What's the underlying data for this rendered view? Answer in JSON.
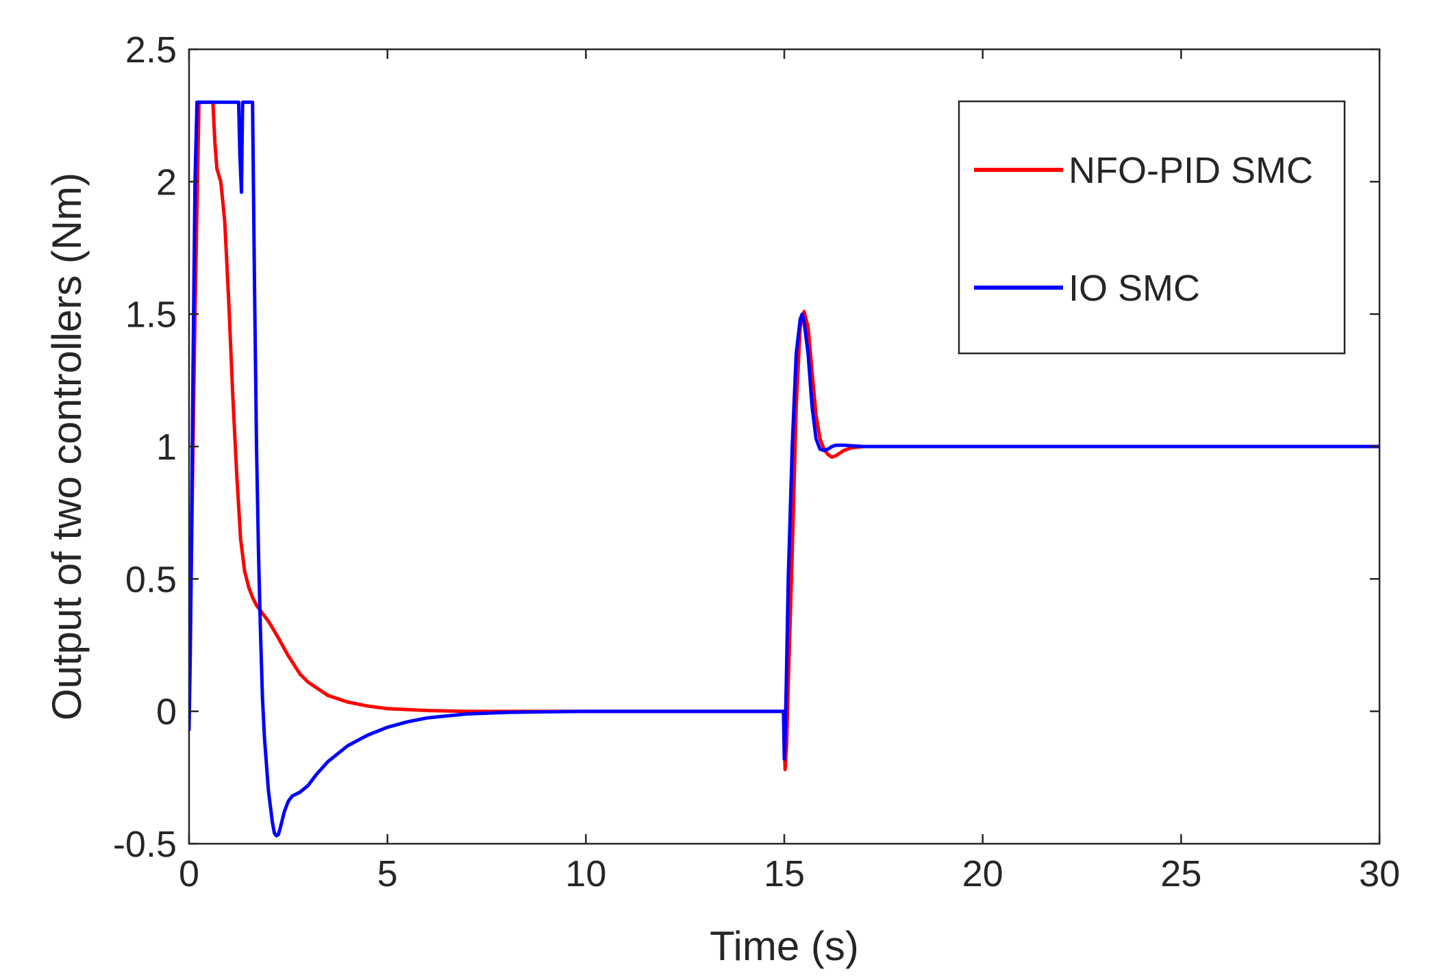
{
  "chart_data": {
    "type": "line",
    "title": "",
    "xlabel": "Time (s)",
    "ylabel": "Output of two controllers (Nm)",
    "xlim": [
      0,
      30
    ],
    "ylim": [
      -0.5,
      2.5
    ],
    "xticks": [
      0,
      5,
      10,
      15,
      20,
      25,
      30
    ],
    "yticks": [
      -0.5,
      0,
      0.5,
      1,
      1.5,
      2,
      2.5
    ],
    "xtick_labels": [
      "0",
      "5",
      "10",
      "15",
      "20",
      "25",
      "30"
    ],
    "ytick_labels": [
      "-0.5",
      "0",
      "0.5",
      "1",
      "1.5",
      "2",
      "2.5"
    ],
    "grid": false,
    "legend_position": "top-right",
    "series": [
      {
        "name": "NFO-PID SMC",
        "color": "#ff0000",
        "x": [
          0,
          0.05,
          0.15,
          0.25,
          0.3,
          0.4,
          0.5,
          0.55,
          0.6,
          0.65,
          0.7,
          0.8,
          0.9,
          1.0,
          1.1,
          1.2,
          1.3,
          1.4,
          1.5,
          1.6,
          1.7,
          1.8,
          2.0,
          2.2,
          2.5,
          2.8,
          3.0,
          3.5,
          4.0,
          4.5,
          5.0,
          6.0,
          7.0,
          8.0,
          10.0,
          12.0,
          14.0,
          14.98,
          15.02,
          15.06,
          15.1,
          15.2,
          15.3,
          15.4,
          15.5,
          15.6,
          15.7,
          15.8,
          15.9,
          16.0,
          16.1,
          16.2,
          16.3,
          16.5,
          16.7,
          17.0,
          17.5,
          18.0,
          20.0,
          25.0,
          30.0
        ],
        "values": [
          0.35,
          0.5,
          1.5,
          2.3,
          2.3,
          2.3,
          2.3,
          2.3,
          2.3,
          2.15,
          2.05,
          2.0,
          1.85,
          1.55,
          1.2,
          0.9,
          0.65,
          0.53,
          0.47,
          0.43,
          0.4,
          0.38,
          0.34,
          0.29,
          0.21,
          0.14,
          0.11,
          0.06,
          0.035,
          0.02,
          0.01,
          0.003,
          0.0,
          0.0,
          0.0,
          0.0,
          0.0,
          0.0,
          -0.22,
          -0.12,
          0.1,
          0.6,
          1.15,
          1.45,
          1.51,
          1.45,
          1.28,
          1.12,
          1.03,
          0.99,
          0.97,
          0.96,
          0.965,
          0.985,
          0.995,
          1.0,
          1.0,
          1.0,
          1.0,
          1.0,
          1.0
        ]
      },
      {
        "name": "IO SMC",
        "color": "#0000ff",
        "x": [
          0,
          0.03,
          0.06,
          0.1,
          0.15,
          0.2,
          0.25,
          0.3,
          0.6,
          0.9,
          1.2,
          1.25,
          1.28,
          1.32,
          1.35,
          1.4,
          1.45,
          1.5,
          1.6,
          1.65,
          1.7,
          1.75,
          1.8,
          1.85,
          1.9,
          2.0,
          2.1,
          2.15,
          2.2,
          2.25,
          2.3,
          2.4,
          2.5,
          2.6,
          2.8,
          3.0,
          3.2,
          3.5,
          4.0,
          4.5,
          5.0,
          5.5,
          6.0,
          7.0,
          8.0,
          9.0,
          10.0,
          12.0,
          14.0,
          14.98,
          15.0,
          15.02,
          15.05,
          15.1,
          15.2,
          15.3,
          15.4,
          15.45,
          15.5,
          15.6,
          15.7,
          15.8,
          15.9,
          16.0,
          16.1,
          16.2,
          16.3,
          16.5,
          17.0,
          18.0,
          20.0,
          25.0,
          30.0
        ],
        "values": [
          -0.07,
          0.2,
          0.6,
          1.3,
          2.0,
          2.3,
          2.3,
          2.3,
          2.3,
          2.3,
          2.3,
          2.3,
          2.1,
          1.96,
          2.3,
          2.3,
          2.3,
          2.3,
          2.3,
          1.6,
          1.0,
          0.6,
          0.3,
          0.05,
          -0.1,
          -0.3,
          -0.42,
          -0.46,
          -0.47,
          -0.465,
          -0.44,
          -0.38,
          -0.34,
          -0.32,
          -0.305,
          -0.28,
          -0.24,
          -0.19,
          -0.13,
          -0.09,
          -0.06,
          -0.04,
          -0.025,
          -0.01,
          -0.004,
          -0.002,
          0.0,
          0.0,
          0.0,
          0.0,
          -0.18,
          -0.1,
          0.1,
          0.5,
          1.0,
          1.35,
          1.48,
          1.5,
          1.47,
          1.35,
          1.15,
          1.03,
          0.99,
          0.985,
          0.99,
          1.0,
          1.005,
          1.005,
          1.0,
          1.0,
          1.0,
          1.0,
          1.0
        ]
      }
    ]
  }
}
